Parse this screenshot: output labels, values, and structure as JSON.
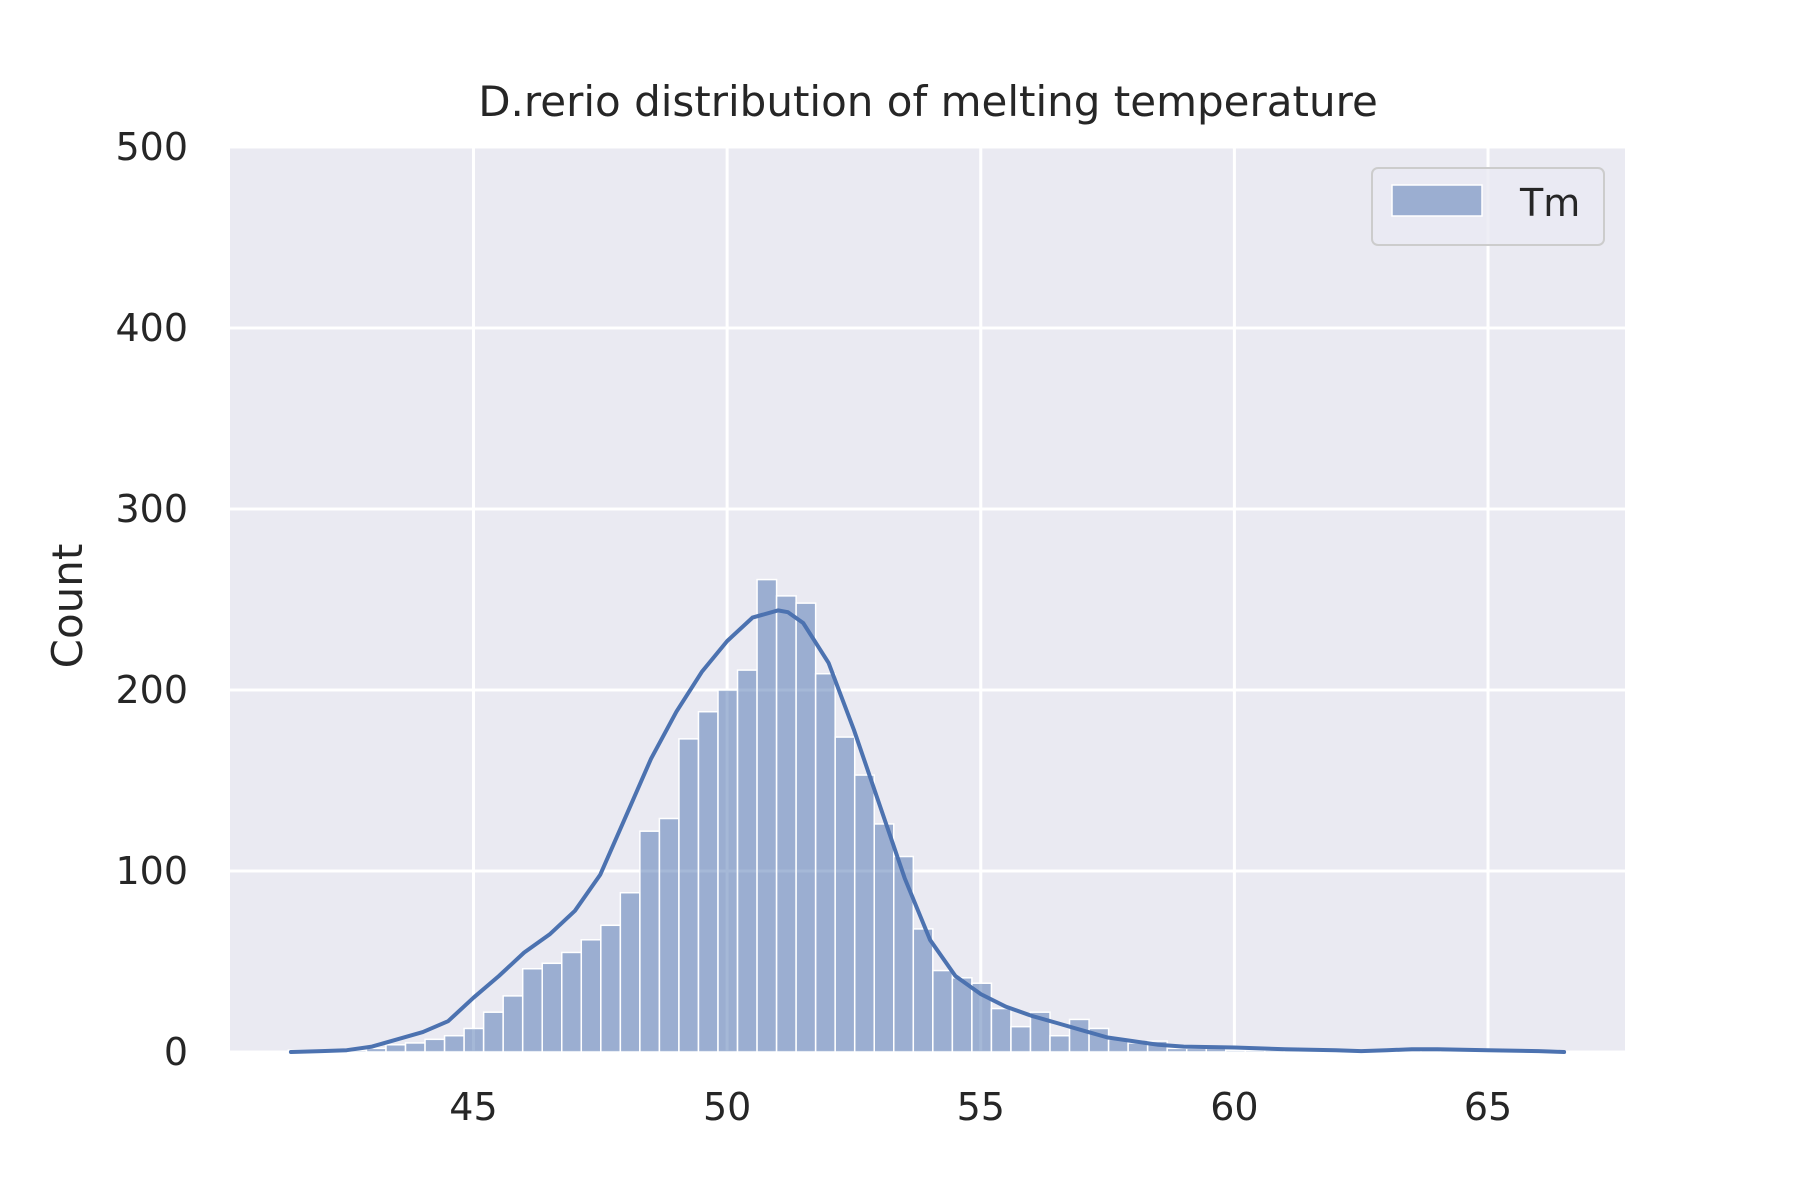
{
  "chart_data": {
    "type": "bar",
    "title": "D.rerio distribution of melting temperature",
    "xlabel": "",
    "ylabel": "Count",
    "xlim": [
      40.2,
      67.7
    ],
    "ylim": [
      0,
      500
    ],
    "x_ticks": [
      45,
      50,
      55,
      60,
      65
    ],
    "y_ticks": [
      0,
      100,
      200,
      300,
      400,
      500
    ],
    "grid": true,
    "legend_position": "top-right",
    "bin_width": 0.385,
    "series": [
      {
        "name": "Tm",
        "bin_left_edges": [
          41.35,
          41.735,
          42.12,
          42.505,
          42.89,
          43.275,
          43.66,
          44.045,
          44.43,
          44.815,
          45.2,
          45.585,
          45.97,
          46.355,
          46.74,
          47.125,
          47.51,
          47.895,
          48.28,
          48.665,
          49.05,
          49.435,
          49.82,
          50.205,
          50.59,
          50.975,
          51.36,
          51.745,
          52.13,
          52.515,
          52.9,
          53.285,
          53.67,
          54.055,
          54.44,
          54.825,
          55.21,
          55.595,
          55.98,
          56.365,
          56.75,
          57.135,
          57.52,
          57.905,
          58.29,
          58.675,
          59.06,
          59.445,
          59.83,
          60.215,
          60.6,
          60.985,
          61.37,
          61.755,
          62.14,
          62.525,
          62.91,
          63.295,
          63.68,
          64.065,
          64.45,
          64.835,
          65.22,
          65.605,
          65.99
        ],
        "counts": [
          1,
          1,
          1,
          1,
          2,
          4,
          5,
          7,
          9,
          13,
          22,
          31,
          46,
          49,
          55,
          62,
          70,
          88,
          122,
          129,
          173,
          188,
          200,
          211,
          261,
          252,
          248,
          209,
          174,
          153,
          126,
          108,
          68,
          45,
          41,
          38,
          24,
          14,
          22,
          9,
          18,
          13,
          7,
          5,
          6,
          2,
          2,
          2,
          1,
          1,
          1,
          1,
          1,
          1,
          0,
          1,
          0,
          1,
          1,
          1,
          1,
          1,
          1,
          1,
          1
        ],
        "color": "#4c72b0"
      }
    ],
    "kde": {
      "x": [
        41.4,
        42.0,
        42.5,
        43.0,
        43.5,
        44.0,
        44.5,
        45.0,
        45.5,
        46.0,
        46.5,
        47.0,
        47.5,
        48.0,
        48.5,
        49.0,
        49.5,
        50.0,
        50.5,
        51.0,
        51.2,
        51.5,
        52.0,
        52.5,
        53.0,
        53.5,
        54.0,
        54.5,
        55.0,
        55.5,
        56.0,
        56.5,
        57.0,
        57.5,
        58.0,
        58.5,
        59.0,
        60.0,
        61.0,
        62.0,
        62.5,
        63.0,
        63.5,
        64.0,
        65.0,
        66.0,
        66.5
      ],
      "y": [
        0,
        0.5,
        1,
        3,
        7,
        11,
        17,
        30,
        42,
        55,
        65,
        78,
        98,
        130,
        162,
        188,
        210,
        227,
        240,
        244,
        243,
        237,
        215,
        178,
        137,
        96,
        62,
        42,
        32,
        25,
        20,
        16,
        12,
        8,
        6,
        4,
        3,
        2.5,
        1.5,
        1,
        0.5,
        1,
        1.5,
        1.5,
        1,
        0.5,
        0
      ]
    }
  }
}
